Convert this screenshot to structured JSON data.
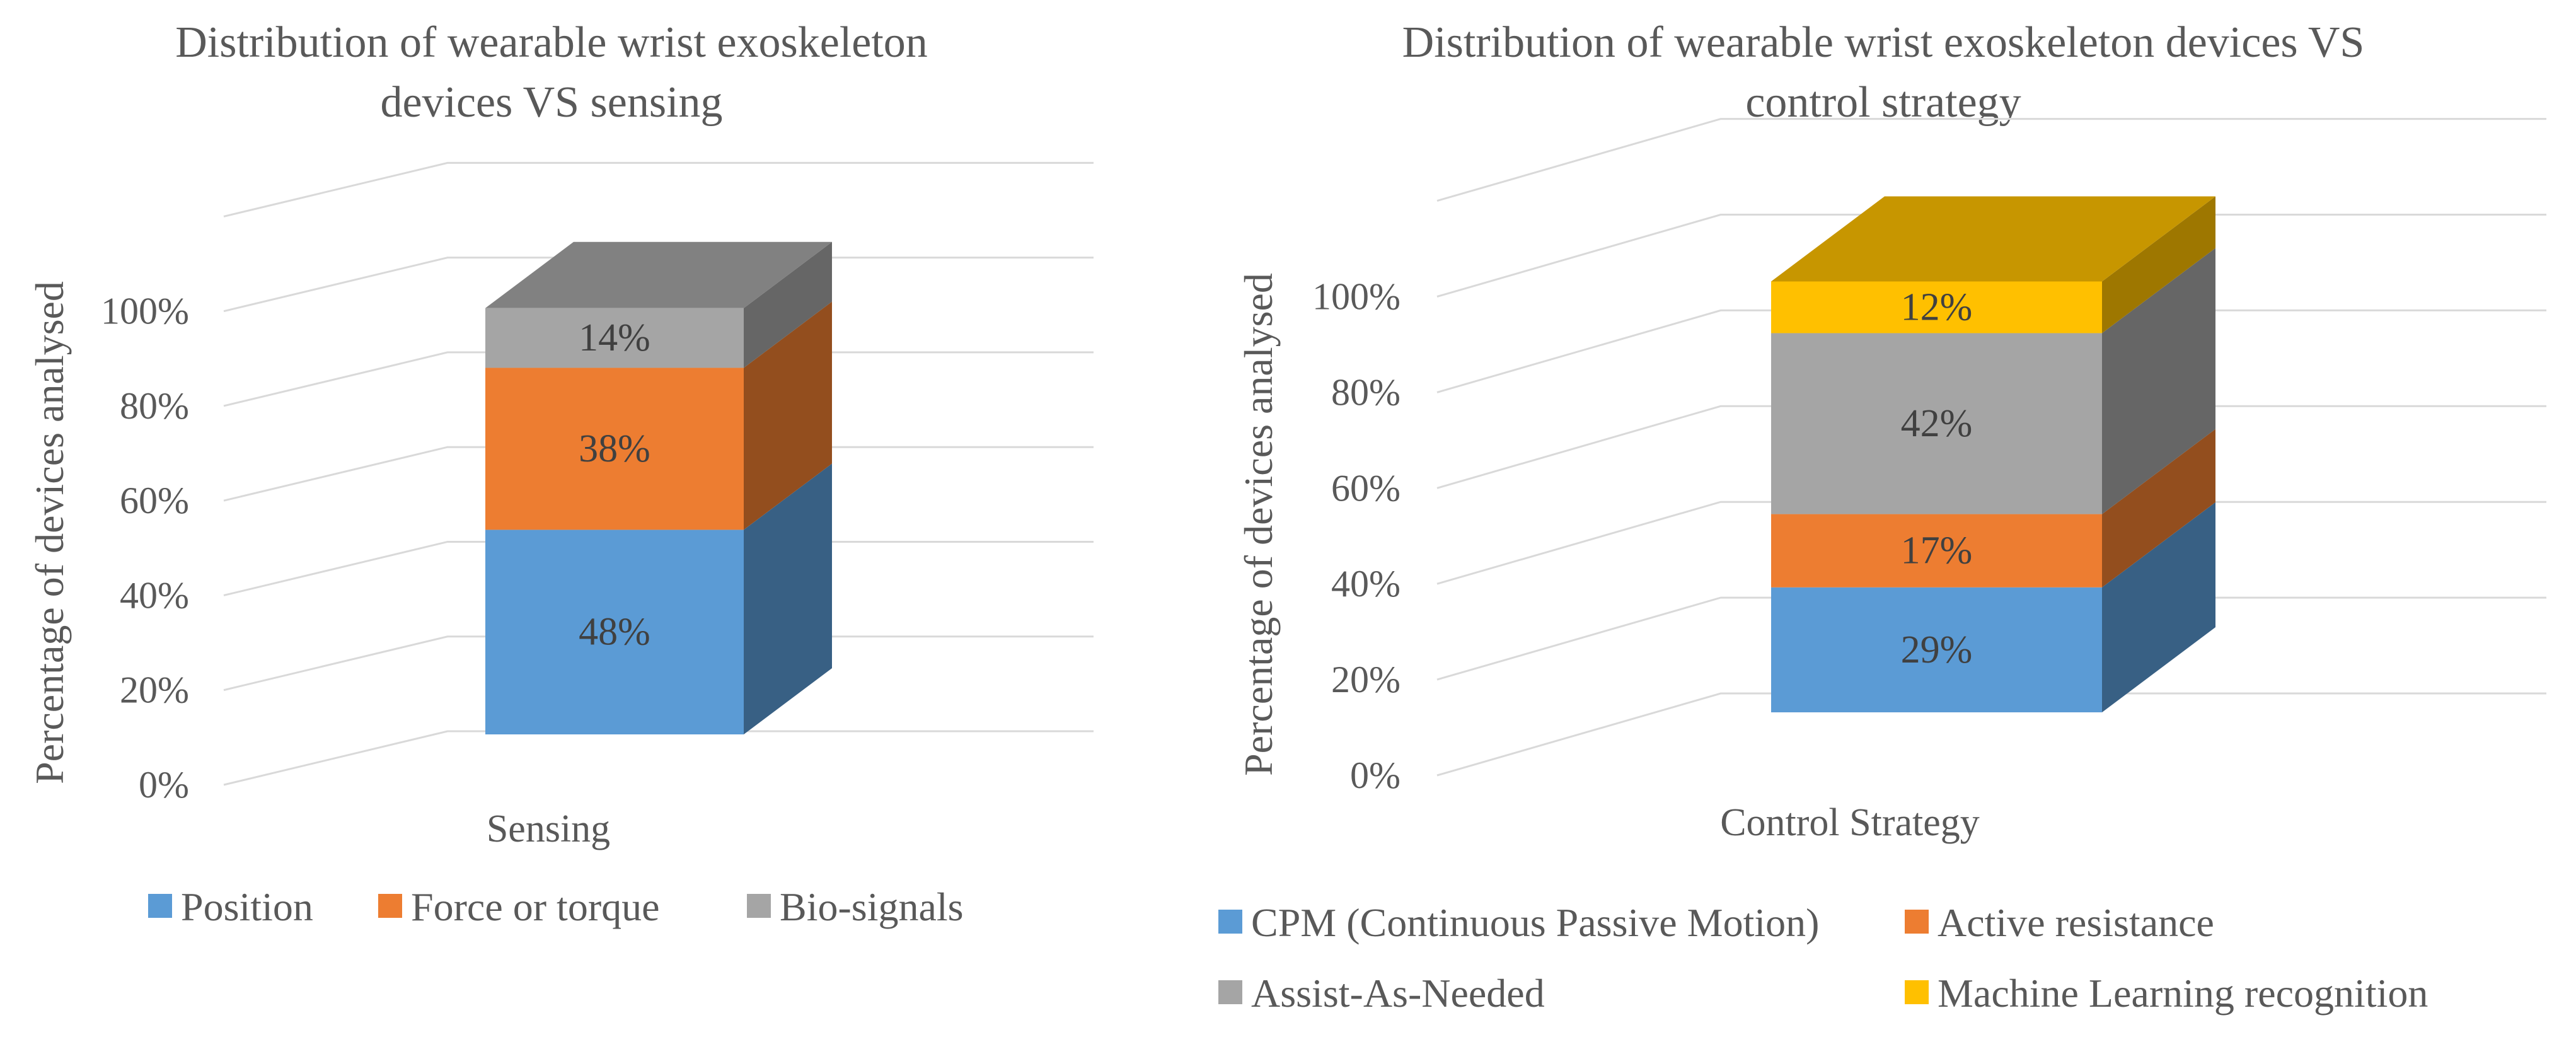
{
  "chart_data": [
    {
      "type": "bar",
      "title": "Distribution of wearable wrist exoskeleton devices VS sensing",
      "title_lines": [
        "Distribution of wearable wrist exoskeleton",
        "devices VS sensing"
      ],
      "ylabel": "Percentage of devices analysed",
      "ylim": [
        0,
        100
      ],
      "y_ticks": [
        "0%",
        "20%",
        "40%",
        "60%",
        "80%",
        "100%"
      ],
      "categories": [
        "Sensing"
      ],
      "stacked": true,
      "three_d": true,
      "grid": true,
      "legend_position": "bottom",
      "series": [
        {
          "name": "Position",
          "values": [
            48
          ],
          "label": "48%",
          "color": "#5b9bd5"
        },
        {
          "name": "Force or torque",
          "values": [
            38
          ],
          "label": "38%",
          "color": "#ed7d31"
        },
        {
          "name": "Bio-signals",
          "values": [
            14
          ],
          "label": "14%",
          "color": "#a5a5a5"
        }
      ]
    },
    {
      "type": "bar",
      "title": "Distribution of wearable wrist exoskeleton devices VS control strategy",
      "title_lines": [
        "Distribution of wearable wrist exoskeleton devices VS",
        "control strategy"
      ],
      "ylabel": "Percentage of devices analysed",
      "ylim": [
        0,
        100
      ],
      "y_ticks": [
        "0%",
        "20%",
        "40%",
        "60%",
        "80%",
        "100%"
      ],
      "categories": [
        "Control Strategy"
      ],
      "stacked": true,
      "three_d": true,
      "grid": true,
      "legend_position": "bottom",
      "series": [
        {
          "name": "CPM (Continuous Passive Motion)",
          "values": [
            29
          ],
          "label": "29%",
          "color": "#5b9bd5"
        },
        {
          "name": "Active resistance",
          "values": [
            17
          ],
          "label": "17%",
          "color": "#ed7d31"
        },
        {
          "name": "Assist-As-Needed",
          "values": [
            42
          ],
          "label": "42%",
          "color": "#a5a5a5"
        },
        {
          "name": "Machine Learning recognition",
          "values": [
            12
          ],
          "label": "12%",
          "color": "#ffc000"
        }
      ]
    }
  ]
}
